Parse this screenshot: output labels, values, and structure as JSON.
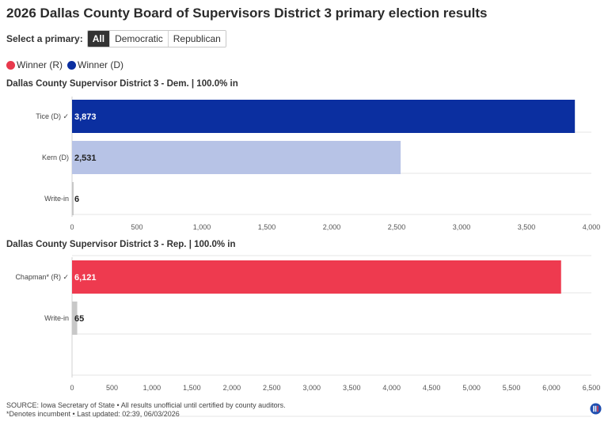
{
  "page": {
    "title": "2026 Dallas County Board of Supervisors District 3 primary election results",
    "filter_label": "Select a primary:",
    "filter_options": [
      "All",
      "Democratic",
      "Republican"
    ],
    "filter_selected": "All"
  },
  "legend": [
    {
      "label": "Winner (R)",
      "color": "#e8394d"
    },
    {
      "label": "Winner (D)",
      "color": "#0b2fa0"
    }
  ],
  "colors": {
    "dem_winner": "#0b2fa0",
    "dem_other": "#b7c3e6",
    "rep_winner": "#ee3a4f",
    "other": "#c8c8c8",
    "grid": "#e6e6e6"
  },
  "chart_data": [
    {
      "type": "bar",
      "orientation": "horizontal",
      "title": "Dallas County Supervisor District 3 - Dem. | 100.0% in",
      "categories": [
        "Tice (D)",
        "Kern (D)",
        "Write-in"
      ],
      "winner_mark": [
        true,
        false,
        false
      ],
      "values": [
        3873,
        2531,
        6
      ],
      "value_labels": [
        "3,873",
        "2,531",
        "6"
      ],
      "bar_colors": [
        "#0b2fa0",
        "#b7c3e6",
        "#c8c8c8"
      ],
      "label_colors": [
        "#ffffff",
        "#222222",
        "#222222"
      ],
      "xlim": [
        0,
        4000
      ],
      "xticks": [
        0,
        500,
        1000,
        1500,
        2000,
        2500,
        3000,
        3500,
        4000
      ],
      "xtick_labels": [
        "0",
        "500",
        "1,000",
        "1,500",
        "2,000",
        "2,500",
        "3,000",
        "3,500",
        "4,000"
      ],
      "grid": true
    },
    {
      "type": "bar",
      "orientation": "horizontal",
      "title": "Dallas County Supervisor District 3 - Rep. | 100.0% in",
      "categories": [
        "Chapman* (R)",
        "Write-in"
      ],
      "winner_mark": [
        true,
        false
      ],
      "values": [
        6121,
        65
      ],
      "value_labels": [
        "6,121",
        "65"
      ],
      "bar_colors": [
        "#ee3a4f",
        "#c8c8c8"
      ],
      "label_colors": [
        "#ffffff",
        "#222222"
      ],
      "xlim": [
        0,
        6500
      ],
      "xticks": [
        0,
        500,
        1000,
        1500,
        2000,
        2500,
        3000,
        3500,
        4000,
        4500,
        5000,
        5500,
        6000,
        6500
      ],
      "xtick_labels": [
        "0",
        "500",
        "1,000",
        "1,500",
        "2,000",
        "2,500",
        "3,000",
        "3,500",
        "4,000",
        "4,500",
        "5,000",
        "5,500",
        "6,000",
        "6,500"
      ],
      "grid": true
    }
  ],
  "footer": {
    "source": "SOURCE: Iowa Secretary of State • All results unofficial until certified by county auditors.",
    "note": "*Denotes incumbent • Last updated: 02:39, 06/03/2026"
  }
}
